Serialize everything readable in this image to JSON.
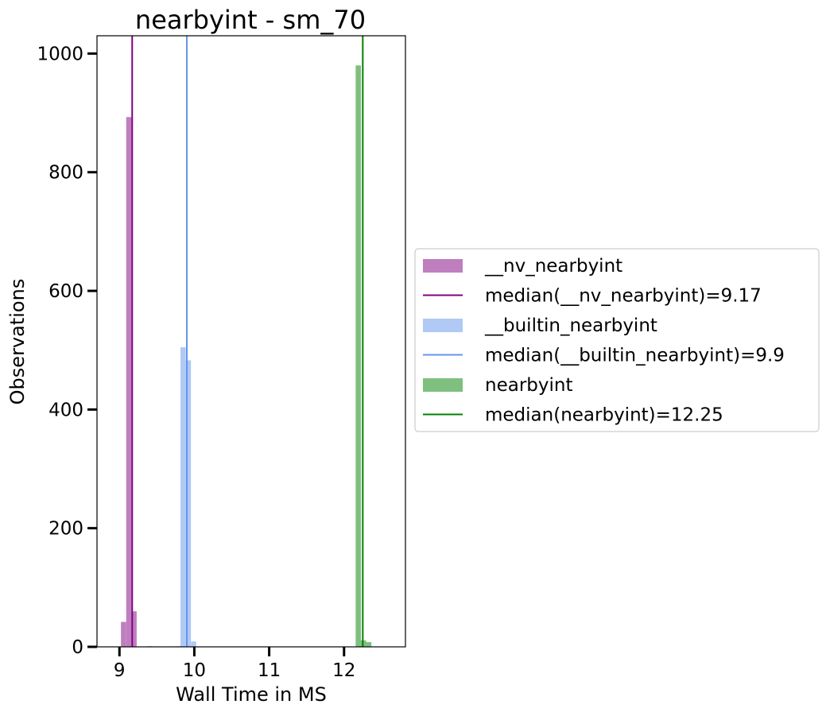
{
  "chart_data": {
    "type": "histogram",
    "title": "nearbyint - sm_70",
    "xlabel": "Wall Time in MS",
    "ylabel": "Observations",
    "xlim": [
      8.7,
      12.82
    ],
    "ylim": [
      0,
      1030
    ],
    "xticks": [
      9,
      10,
      11,
      12
    ],
    "yticks": [
      0,
      200,
      400,
      600,
      800,
      1000
    ],
    "xtick_labels": [
      "9",
      "10",
      "11",
      "12"
    ],
    "ytick_labels": [
      "0",
      "200",
      "400",
      "600",
      "800",
      "1000"
    ],
    "bin_width": 0.07,
    "legend_position": "center-right (outside plot)",
    "series": [
      {
        "name": "__nv_nearbyint",
        "color": "#bf7fbf",
        "bins": [
          {
            "x": 9.055,
            "count": 42
          },
          {
            "x": 9.125,
            "count": 893
          },
          {
            "x": 9.195,
            "count": 60
          },
          {
            "x": 9.405,
            "count": 1
          }
        ],
        "median": 9.17,
        "median_label": "median(__nv_nearbyint)=9.17",
        "median_color": "#800080"
      },
      {
        "name": "__builtin_nearbyint",
        "color": "#b0c9f5",
        "bins": [
          {
            "x": 9.78,
            "count": 1
          },
          {
            "x": 9.85,
            "count": 505
          },
          {
            "x": 9.92,
            "count": 483
          },
          {
            "x": 9.99,
            "count": 9
          }
        ],
        "median": 9.9,
        "median_label": "median(__builtin_nearbyint)=9.9",
        "median_color": "#6495ed"
      },
      {
        "name": "nearbyint",
        "color": "#7fbf7f",
        "bins": [
          {
            "x": 12.19,
            "count": 980
          },
          {
            "x": 12.26,
            "count": 11
          },
          {
            "x": 12.33,
            "count": 8
          }
        ],
        "median": 12.25,
        "median_label": "median(nearbyint)=12.25",
        "median_color": "#008000"
      }
    ]
  }
}
